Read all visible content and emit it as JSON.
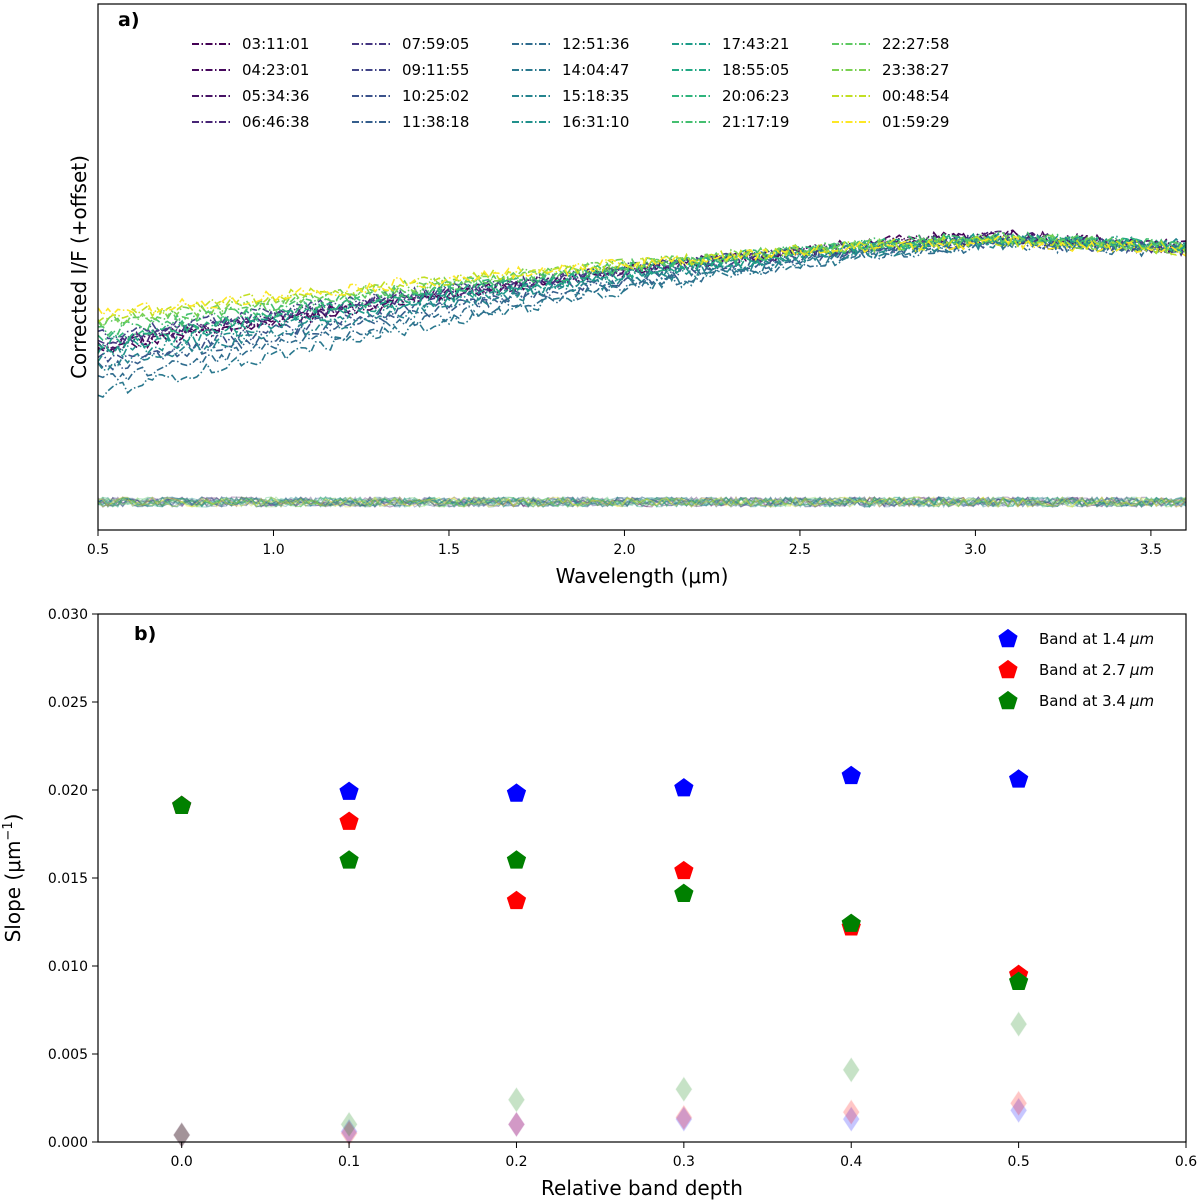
{
  "chart_data": [
    {
      "type": "line",
      "panel_label": "a)",
      "xlabel": "Wavelength (μm)",
      "ylabel": "Corrected I/F (+offset)",
      "xlim": [
        0.5,
        3.6
      ],
      "x_ticks": [
        "0.5",
        "1.0",
        "1.5",
        "2.0",
        "2.5",
        "3.0",
        "3.5"
      ],
      "legend_position": "top",
      "series": [
        {
          "name": "03:11:01",
          "color": "#440154",
          "start": 0.52,
          "peak": 0.99,
          "end": 0.94
        },
        {
          "name": "04:23:01",
          "color": "#46085c",
          "start": 0.53,
          "peak": 0.985,
          "end": 0.935
        },
        {
          "name": "05:34:36",
          "color": "#471365",
          "start": 0.54,
          "peak": 0.98,
          "end": 0.93
        },
        {
          "name": "06:46:38",
          "color": "#482576",
          "start": 0.55,
          "peak": 0.98,
          "end": 0.93
        },
        {
          "name": "07:59:05",
          "color": "#453581",
          "start": 0.56,
          "peak": 0.97,
          "end": 0.93
        },
        {
          "name": "09:11:55",
          "color": "#414487",
          "start": 0.58,
          "peak": 0.97,
          "end": 0.93
        },
        {
          "name": "10:25:02",
          "color": "#3b528b",
          "start": 0.48,
          "peak": 0.96,
          "end": 0.93
        },
        {
          "name": "11:38:18",
          "color": "#355f8d",
          "start": 0.45,
          "peak": 0.96,
          "end": 0.93
        },
        {
          "name": "12:51:36",
          "color": "#2f6c8e",
          "start": 0.4,
          "peak": 0.95,
          "end": 0.92
        },
        {
          "name": "14:04:47",
          "color": "#2a788e",
          "start": 0.35,
          "peak": 0.955,
          "end": 0.94
        },
        {
          "name": "15:18:35",
          "color": "#25848e",
          "start": 0.46,
          "peak": 0.96,
          "end": 0.95
        },
        {
          "name": "16:31:10",
          "color": "#21918c",
          "start": 0.5,
          "peak": 0.97,
          "end": 0.95
        },
        {
          "name": "17:43:21",
          "color": "#1e9c89",
          "start": 0.52,
          "peak": 0.975,
          "end": 0.94
        },
        {
          "name": "18:55:05",
          "color": "#22a884",
          "start": 0.55,
          "peak": 0.975,
          "end": 0.94
        },
        {
          "name": "20:06:23",
          "color": "#2fb47c",
          "start": 0.57,
          "peak": 0.98,
          "end": 0.94
        },
        {
          "name": "21:17:19",
          "color": "#44bf70",
          "start": 0.6,
          "peak": 0.98,
          "end": 0.94
        },
        {
          "name": "22:27:58",
          "color": "#5ec962",
          "start": 0.62,
          "peak": 0.975,
          "end": 0.935
        },
        {
          "name": "23:38:27",
          "color": "#7ad151",
          "start": 0.64,
          "peak": 0.97,
          "end": 0.93
        },
        {
          "name": "00:48:54",
          "color": "#c2df23",
          "start": 0.66,
          "peak": 0.965,
          "end": 0.93
        },
        {
          "name": "01:59:29",
          "color": "#fde725",
          "start": 0.67,
          "peak": 0.96,
          "end": 0.925
        }
      ]
    },
    {
      "type": "scatter",
      "panel_label": "b)",
      "xlabel": "Relative band depth",
      "ylabel": "Slope (μm",
      "ylabel_sup": "−1",
      "ylabel_close": ")",
      "xlim": [
        -0.05,
        0.6
      ],
      "ylim": [
        0.0,
        0.03
      ],
      "x_ticks": [
        0.0,
        0.1,
        0.2,
        0.3,
        0.4,
        0.5,
        0.6
      ],
      "x_tick_labels": [
        "0.0",
        "0.1",
        "0.2",
        "0.3",
        "0.4",
        "0.5",
        "0.6"
      ],
      "y_ticks": [
        0.0,
        0.005,
        0.01,
        0.015,
        0.02,
        0.025,
        0.03
      ],
      "y_tick_labels": [
        "0.000",
        "0.005",
        "0.010",
        "0.015",
        "0.020",
        "0.025",
        "0.030"
      ],
      "legend_position": "top-right",
      "series": [
        {
          "name": "Band at 1.4",
          "unit": "μm",
          "color": "#0000ff",
          "x": [
            0.0,
            0.1,
            0.2,
            0.3,
            0.4,
            0.5
          ],
          "y": [
            0.0191,
            0.0199,
            0.0198,
            0.0201,
            0.0208,
            0.0206
          ],
          "err": [
            0.0004,
            0.0006,
            0.001,
            0.0013,
            0.0013,
            0.0018
          ]
        },
        {
          "name": "Band at 2.7",
          "unit": "μm",
          "color": "#ff0000",
          "x": [
            0.0,
            0.1,
            0.2,
            0.3,
            0.4,
            0.5
          ],
          "y": [
            0.0191,
            0.0182,
            0.0137,
            0.0154,
            0.0122,
            0.0095
          ],
          "err": [
            0.0004,
            0.0005,
            0.001,
            0.0014,
            0.0017,
            0.0022
          ]
        },
        {
          "name": "Band at 3.4",
          "unit": "μm",
          "color": "#008000",
          "x": [
            0.0,
            0.1,
            0.2,
            0.3,
            0.4,
            0.5
          ],
          "y": [
            0.0191,
            0.016,
            0.016,
            0.0141,
            0.0124,
            0.0091
          ],
          "err": [
            0.0004,
            0.001,
            0.0024,
            0.003,
            0.0041,
            0.0067
          ]
        }
      ]
    }
  ]
}
